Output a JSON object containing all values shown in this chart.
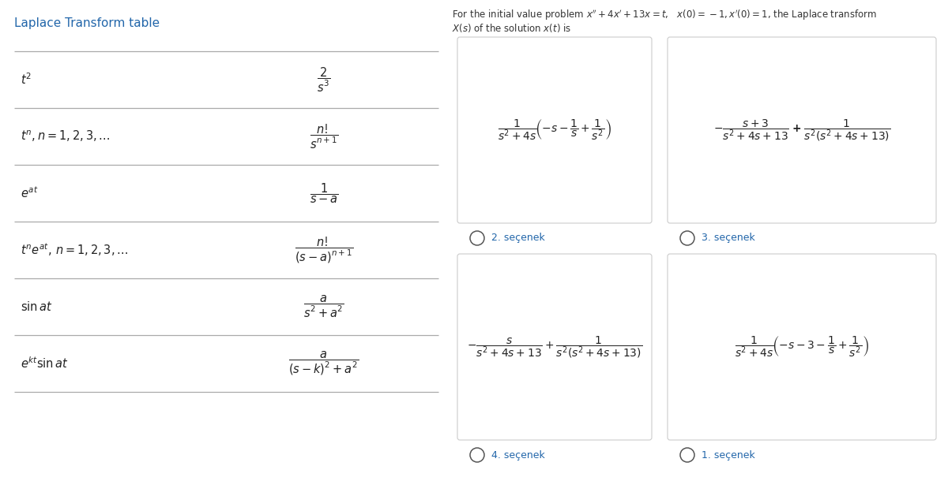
{
  "bg_color": "#ffffff",
  "title_color": "#2266aa",
  "table_title": "Laplace Transform table",
  "table_rows_left": [
    "$t^2$",
    "$t^n, n = 1, 2, 3, \\ldots$",
    "$e^{at}$",
    "$t^n e^{at},\\, n = 1, 2, 3, \\ldots$",
    "$\\sin at$",
    "$e^{kt}\\sin at$"
  ],
  "table_rows_right": [
    "$\\dfrac{2}{s^3}$",
    "$\\dfrac{n!}{s^{n+1}}$",
    "$\\dfrac{1}{s-a}$",
    "$\\dfrac{n!}{(s-a)^{n+1}}$",
    "$\\dfrac{a}{s^2+a^2}$",
    "$\\dfrac{a}{(s-k)^2+a^2}$"
  ],
  "problem_line1": "For the initial value problem $x''+4x'+13x = t$,   $x(0) = -1, x'(0) = 1$, the Laplace transform",
  "problem_line2": "$X(s)$ of the solution $x(t)$ is",
  "option2_math": "$\\dfrac{1}{s^2+4s}\\!\\left(-s - \\dfrac{1}{s} + \\dfrac{1}{s^2}\\right)$",
  "option3_math": "$-\\dfrac{s+3}{s^2+4s+13}\\;\\mathbf{+}\\;\\dfrac{1}{s^2(s^2+4s+13)}$",
  "option4_math": "$-\\dfrac{s}{s^2+4s+13} + \\dfrac{1}{s^2(s^2+4s+13)}$",
  "option1_math": "$\\dfrac{1}{s^2+4s}\\!\\left(-s - 3 - \\dfrac{1}{s} + \\dfrac{1}{s^2}\\right)$",
  "option_label2": "2. seçenek",
  "option_label3": "3. seçenek",
  "option_label4": "4. seçenek",
  "option_label1": "1. seçenek",
  "box_facecolor": "#ffffff",
  "box_edgecolor": "#cccccc",
  "label_color": "#2266aa",
  "text_color": "#333333",
  "line_color": "#aaaaaa"
}
